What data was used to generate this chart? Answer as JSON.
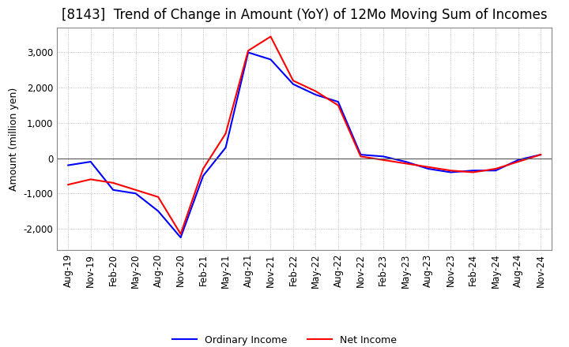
{
  "title": "[8143]  Trend of Change in Amount (YoY) of 12Mo Moving Sum of Incomes",
  "ylabel": "Amount (million yen)",
  "ylim": [
    -2600,
    3700
  ],
  "yticks": [
    -2000,
    -1000,
    0,
    1000,
    2000,
    3000
  ],
  "x_labels": [
    "Aug-19",
    "Nov-19",
    "Feb-20",
    "May-20",
    "Aug-20",
    "Nov-20",
    "Feb-21",
    "May-21",
    "Aug-21",
    "Nov-21",
    "Feb-22",
    "May-22",
    "Aug-22",
    "Nov-22",
    "Feb-23",
    "May-23",
    "Aug-23",
    "Nov-23",
    "Feb-24",
    "May-24",
    "Aug-24",
    "Nov-24"
  ],
  "ordinary_income": [
    -200,
    -100,
    -900,
    -1000,
    -1500,
    -2250,
    -500,
    300,
    3000,
    2800,
    2100,
    1800,
    1600,
    100,
    50,
    -100,
    -300,
    -400,
    -350,
    -350,
    -50,
    100
  ],
  "net_income": [
    -750,
    -600,
    -700,
    -900,
    -1100,
    -2150,
    -300,
    700,
    3050,
    3450,
    2200,
    1900,
    1500,
    50,
    -50,
    -150,
    -250,
    -350,
    -400,
    -300,
    -100,
    100
  ],
  "ordinary_color": "#0000ff",
  "net_color": "#ff0000",
  "line_width": 1.5,
  "background_color": "#ffffff",
  "grid_color": "#aaaaaa",
  "title_fontsize": 12,
  "label_fontsize": 9,
  "tick_fontsize": 8.5
}
